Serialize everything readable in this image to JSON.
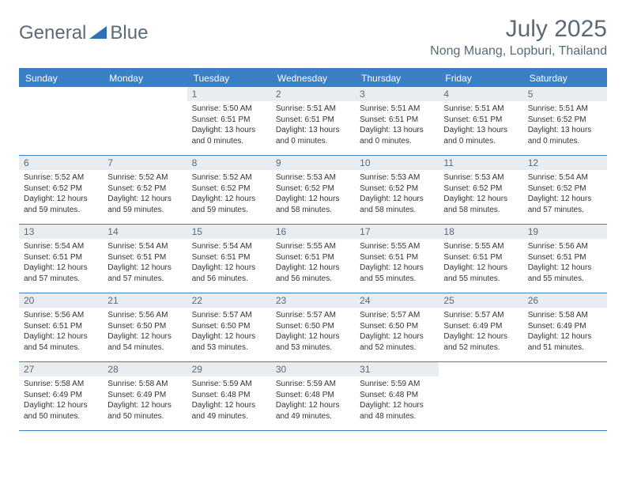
{
  "brand": {
    "part1": "General",
    "part2": "Blue"
  },
  "title": "July 2025",
  "location": "Nong Muang, Lopburi, Thailand",
  "colors": {
    "header_bg": "#3b7fc4",
    "header_text": "#ffffff",
    "daynum_bg": "#e9edf1",
    "text_muted": "#5a6a78",
    "text": "#333333",
    "background": "#ffffff"
  },
  "day_names": [
    "Sunday",
    "Monday",
    "Tuesday",
    "Wednesday",
    "Thursday",
    "Friday",
    "Saturday"
  ],
  "weeks": [
    [
      null,
      null,
      {
        "n": "1",
        "sr": "5:50 AM",
        "ss": "6:51 PM",
        "dl": "13 hours and 0 minutes."
      },
      {
        "n": "2",
        "sr": "5:51 AM",
        "ss": "6:51 PM",
        "dl": "13 hours and 0 minutes."
      },
      {
        "n": "3",
        "sr": "5:51 AM",
        "ss": "6:51 PM",
        "dl": "13 hours and 0 minutes."
      },
      {
        "n": "4",
        "sr": "5:51 AM",
        "ss": "6:51 PM",
        "dl": "13 hours and 0 minutes."
      },
      {
        "n": "5",
        "sr": "5:51 AM",
        "ss": "6:52 PM",
        "dl": "13 hours and 0 minutes."
      }
    ],
    [
      {
        "n": "6",
        "sr": "5:52 AM",
        "ss": "6:52 PM",
        "dl": "12 hours and 59 minutes."
      },
      {
        "n": "7",
        "sr": "5:52 AM",
        "ss": "6:52 PM",
        "dl": "12 hours and 59 minutes."
      },
      {
        "n": "8",
        "sr": "5:52 AM",
        "ss": "6:52 PM",
        "dl": "12 hours and 59 minutes."
      },
      {
        "n": "9",
        "sr": "5:53 AM",
        "ss": "6:52 PM",
        "dl": "12 hours and 58 minutes."
      },
      {
        "n": "10",
        "sr": "5:53 AM",
        "ss": "6:52 PM",
        "dl": "12 hours and 58 minutes."
      },
      {
        "n": "11",
        "sr": "5:53 AM",
        "ss": "6:52 PM",
        "dl": "12 hours and 58 minutes."
      },
      {
        "n": "12",
        "sr": "5:54 AM",
        "ss": "6:52 PM",
        "dl": "12 hours and 57 minutes."
      }
    ],
    [
      {
        "n": "13",
        "sr": "5:54 AM",
        "ss": "6:51 PM",
        "dl": "12 hours and 57 minutes."
      },
      {
        "n": "14",
        "sr": "5:54 AM",
        "ss": "6:51 PM",
        "dl": "12 hours and 57 minutes."
      },
      {
        "n": "15",
        "sr": "5:54 AM",
        "ss": "6:51 PM",
        "dl": "12 hours and 56 minutes."
      },
      {
        "n": "16",
        "sr": "5:55 AM",
        "ss": "6:51 PM",
        "dl": "12 hours and 56 minutes."
      },
      {
        "n": "17",
        "sr": "5:55 AM",
        "ss": "6:51 PM",
        "dl": "12 hours and 55 minutes."
      },
      {
        "n": "18",
        "sr": "5:55 AM",
        "ss": "6:51 PM",
        "dl": "12 hours and 55 minutes."
      },
      {
        "n": "19",
        "sr": "5:56 AM",
        "ss": "6:51 PM",
        "dl": "12 hours and 55 minutes."
      }
    ],
    [
      {
        "n": "20",
        "sr": "5:56 AM",
        "ss": "6:51 PM",
        "dl": "12 hours and 54 minutes."
      },
      {
        "n": "21",
        "sr": "5:56 AM",
        "ss": "6:50 PM",
        "dl": "12 hours and 54 minutes."
      },
      {
        "n": "22",
        "sr": "5:57 AM",
        "ss": "6:50 PM",
        "dl": "12 hours and 53 minutes."
      },
      {
        "n": "23",
        "sr": "5:57 AM",
        "ss": "6:50 PM",
        "dl": "12 hours and 53 minutes."
      },
      {
        "n": "24",
        "sr": "5:57 AM",
        "ss": "6:50 PM",
        "dl": "12 hours and 52 minutes."
      },
      {
        "n": "25",
        "sr": "5:57 AM",
        "ss": "6:49 PM",
        "dl": "12 hours and 52 minutes."
      },
      {
        "n": "26",
        "sr": "5:58 AM",
        "ss": "6:49 PM",
        "dl": "12 hours and 51 minutes."
      }
    ],
    [
      {
        "n": "27",
        "sr": "5:58 AM",
        "ss": "6:49 PM",
        "dl": "12 hours and 50 minutes."
      },
      {
        "n": "28",
        "sr": "5:58 AM",
        "ss": "6:49 PM",
        "dl": "12 hours and 50 minutes."
      },
      {
        "n": "29",
        "sr": "5:59 AM",
        "ss": "6:48 PM",
        "dl": "12 hours and 49 minutes."
      },
      {
        "n": "30",
        "sr": "5:59 AM",
        "ss": "6:48 PM",
        "dl": "12 hours and 49 minutes."
      },
      {
        "n": "31",
        "sr": "5:59 AM",
        "ss": "6:48 PM",
        "dl": "12 hours and 48 minutes."
      },
      null,
      null
    ]
  ],
  "labels": {
    "sunrise": "Sunrise:",
    "sunset": "Sunset:",
    "daylight": "Daylight:"
  }
}
